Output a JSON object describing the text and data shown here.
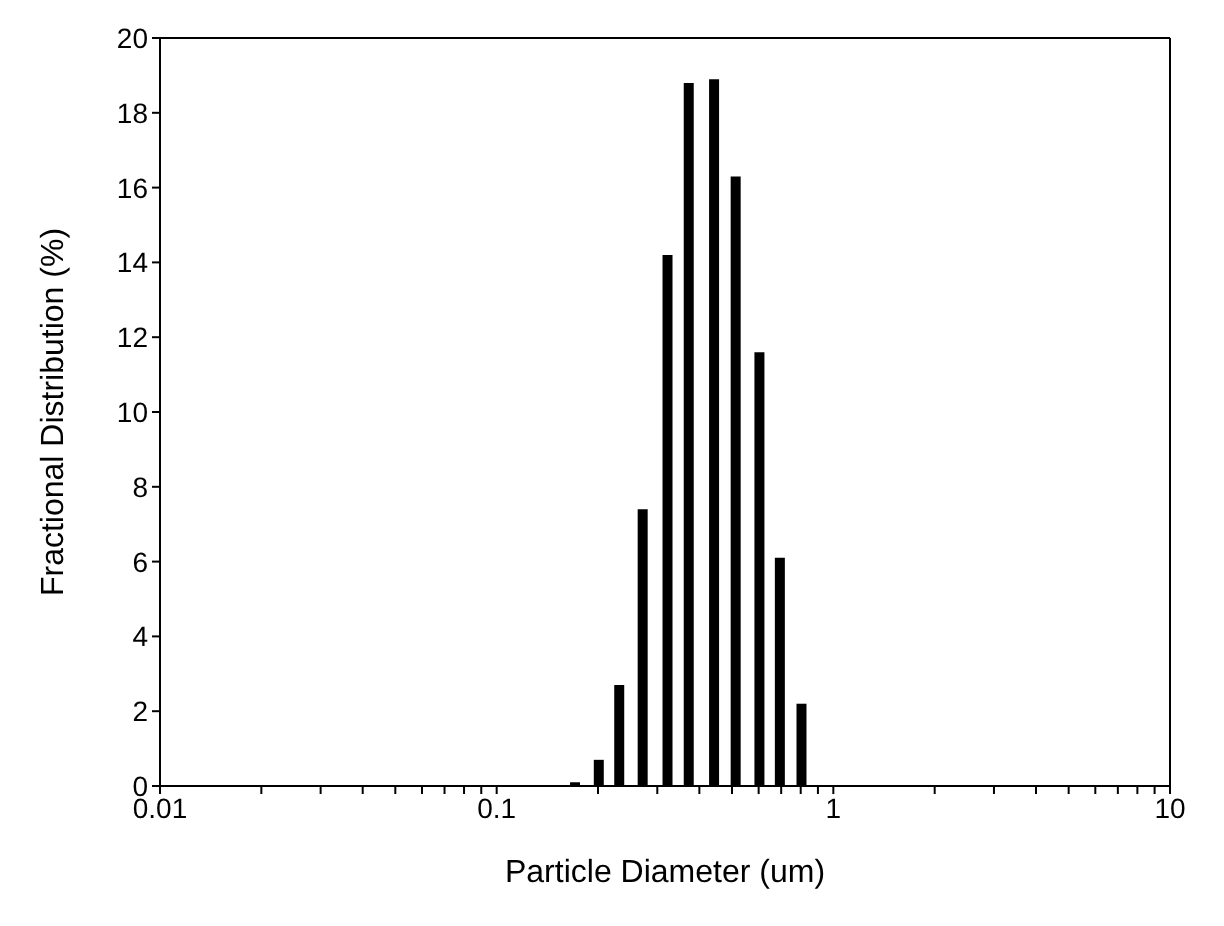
{
  "chart_data": {
    "type": "bar",
    "xlabel": "Particle Diameter (um)",
    "ylabel": "Fractional Distribution (%)",
    "x": [
      0.17,
      0.2,
      0.23,
      0.27,
      0.32,
      0.37,
      0.44,
      0.51,
      0.6,
      0.69,
      0.8
    ],
    "series": [
      {
        "color": "#000000",
        "values": [
          0.1,
          0.7,
          2.7,
          7.4,
          14.2,
          18.8,
          18.9,
          16.3,
          11.6,
          6.1,
          2.2
        ]
      }
    ],
    "log": "x",
    "xlim": [
      0.01,
      10
    ],
    "xticks": [
      0.01,
      {
        "value": 0.02,
        "label": null
      },
      {
        "value": 0.03,
        "label": null
      },
      {
        "value": 0.04,
        "label": null
      },
      {
        "value": 0.05,
        "label": null
      },
      {
        "value": 0.06,
        "label": null
      },
      {
        "value": 0.07,
        "label": null
      },
      {
        "value": 0.08,
        "label": null
      },
      {
        "value": 0.09,
        "label": null
      },
      0.1,
      {
        "value": 0.2,
        "label": null
      },
      {
        "value": 0.3,
        "label": null
      },
      {
        "value": 0.4,
        "label": null
      },
      {
        "value": 0.5,
        "label": null
      },
      {
        "value": 0.6,
        "label": null
      },
      {
        "value": 0.7,
        "label": null
      },
      {
        "value": 0.8,
        "label": null
      },
      {
        "value": 0.9,
        "label": null
      },
      1,
      {
        "value": 2,
        "label": null
      },
      {
        "value": 3,
        "label": null
      },
      {
        "value": 4,
        "label": null
      },
      {
        "value": 5,
        "label": null
      },
      {
        "value": 6,
        "label": null
      },
      {
        "value": 7,
        "label": null
      },
      {
        "value": 8,
        "label": null
      },
      {
        "value": 9,
        "label": null
      },
      10
    ],
    "ylim": [
      0,
      20
    ],
    "yticks": [
      0,
      2,
      4,
      6,
      8,
      10,
      12,
      14,
      16,
      18,
      20
    ],
    "grid": false,
    "legend": false
  }
}
